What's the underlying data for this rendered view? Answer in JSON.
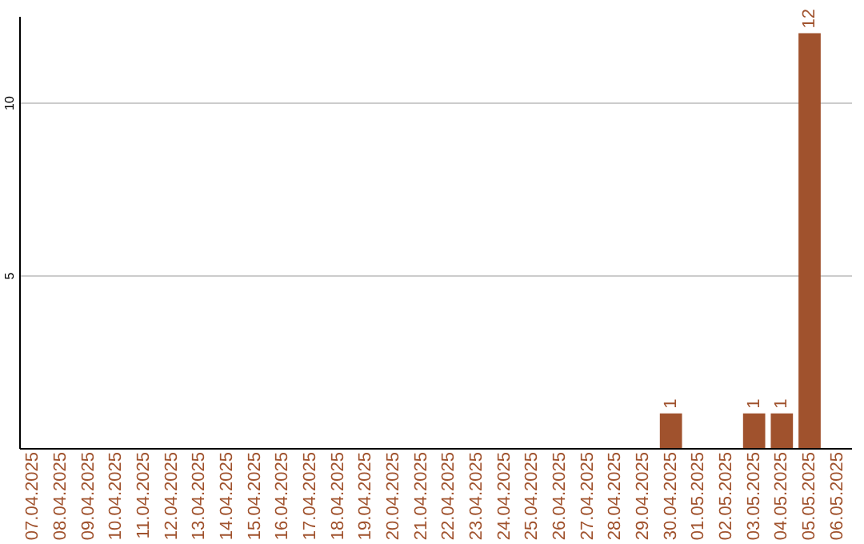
{
  "chart_data": {
    "type": "bar",
    "categories": [
      "07.04.2025",
      "08.04.2025",
      "09.04.2025",
      "10.04.2025",
      "11.04.2025",
      "12.04.2025",
      "13.04.2025",
      "14.04.2025",
      "15.04.2025",
      "16.04.2025",
      "17.04.2025",
      "18.04.2025",
      "19.04.2025",
      "20.04.2025",
      "21.04.2025",
      "22.04.2025",
      "23.04.2025",
      "24.04.2025",
      "25.04.2025",
      "26.04.2025",
      "27.04.2025",
      "28.04.2025",
      "29.04.2025",
      "30.04.2025",
      "01.05.2025",
      "02.05.2025",
      "03.05.2025",
      "04.05.2025",
      "05.05.2025",
      "06.05.2025"
    ],
    "values": [
      0,
      0,
      0,
      0,
      0,
      0,
      0,
      0,
      0,
      0,
      0,
      0,
      0,
      0,
      0,
      0,
      0,
      0,
      0,
      0,
      0,
      0,
      0,
      1,
      0,
      0,
      1,
      1,
      12,
      0
    ],
    "value_labels": [
      null,
      null,
      null,
      null,
      null,
      null,
      null,
      null,
      null,
      null,
      null,
      null,
      null,
      null,
      null,
      null,
      null,
      null,
      null,
      null,
      null,
      null,
      null,
      "1",
      null,
      null,
      "1",
      "1",
      "12",
      null
    ],
    "color": "#a0522d",
    "ylim": [
      0,
      12.5
    ],
    "yticks": [
      5,
      10
    ],
    "grid": "y"
  }
}
